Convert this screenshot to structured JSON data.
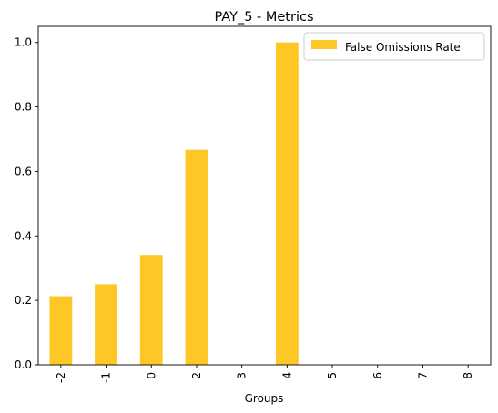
{
  "chart_data": {
    "type": "bar",
    "title": "PAY_5 - Metrics",
    "xlabel": "Groups",
    "ylabel": "",
    "categories": [
      "-2",
      "-1",
      "0",
      "2",
      "3",
      "4",
      "5",
      "6",
      "7",
      "8"
    ],
    "series": [
      {
        "name": "False Omissions Rate",
        "values": [
          0.213,
          0.25,
          0.341,
          0.667,
          0.0,
          1.0,
          0.0,
          0.0,
          0.0,
          0.0
        ],
        "color": "#fdc726"
      }
    ],
    "ylim": [
      0,
      1.05
    ],
    "yticks": [
      "0.0",
      "0.2",
      "0.4",
      "0.6",
      "0.8",
      "1.0"
    ],
    "grid": false,
    "legend_position": "top-right"
  }
}
